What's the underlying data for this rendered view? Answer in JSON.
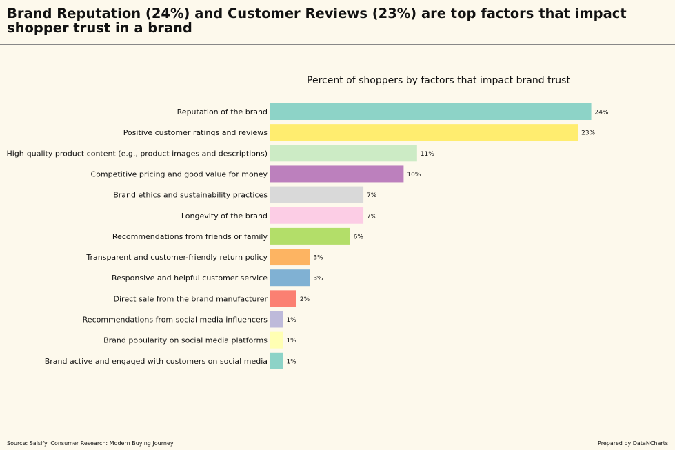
{
  "header": {
    "title": "Brand Reputation (24%) and Customer Reviews (23%) are top factors that impact shopper trust in a brand"
  },
  "footer": {
    "source": "Source: Salsify: Consumer Research: Modern Buying Journey",
    "credit": "Prepared by DataNCharts"
  },
  "chart_data": {
    "type": "bar",
    "orientation": "horizontal",
    "title": "Percent of shoppers by factors that impact brand trust",
    "xlabel": "",
    "ylabel": "",
    "xlim": [
      0,
      25
    ],
    "grid": false,
    "legend": "none",
    "categories": [
      "Reputation of the brand",
      "Positive customer ratings and reviews",
      "High-quality product content (e.g., product images and descriptions)",
      "Competitive pricing and good value for money",
      "Brand ethics and sustainability practices",
      "Longevity of the brand",
      "Recommendations from friends or family",
      "Transparent and customer-friendly return policy",
      "Responsive and helpful customer service",
      "Direct sale from the brand manufacturer",
      "Recommendations from social media influencers",
      "Brand popularity on social media platforms",
      "Brand active and engaged with customers on social media"
    ],
    "values": [
      24,
      23,
      11,
      10,
      7,
      7,
      6,
      3,
      3,
      2,
      1,
      1,
      1
    ],
    "data_labels": [
      "24%",
      "23%",
      "11%",
      "10%",
      "7%",
      "7%",
      "6%",
      "3%",
      "3%",
      "2%",
      "1%",
      "1%",
      "1%"
    ],
    "colors": [
      "#8dd3c7",
      "#ffed6f",
      "#ccebc5",
      "#bc80bd",
      "#d9d9d9",
      "#fccde5",
      "#b3de69",
      "#fdb462",
      "#80b1d3",
      "#fb8072",
      "#bebada",
      "#ffffb3",
      "#8dd3c7"
    ]
  }
}
